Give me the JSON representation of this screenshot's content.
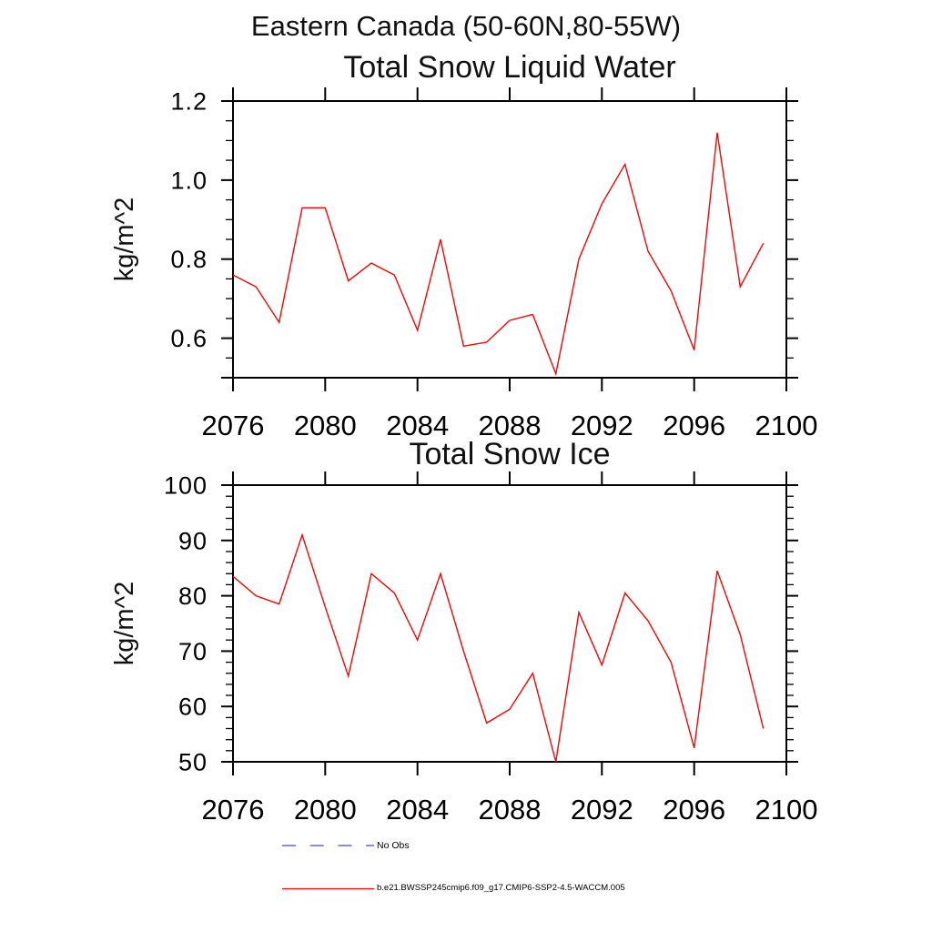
{
  "figure": {
    "title": "Eastern Canada (50-60N,80-55W)",
    "background_color": "#ffffff",
    "axis_color": "#000000"
  },
  "legend": {
    "items": [
      {
        "label": "No Obs",
        "color": "#4444cc",
        "style": "dashed"
      },
      {
        "label": "b.e21.BWSSP245cmip6.f09_g17.CMIP6-SSP2-4.5-WACCM.005",
        "color": "#ff0000",
        "style": "solid"
      }
    ]
  },
  "chart_data": [
    {
      "type": "line",
      "title": "Total Snow Liquid Water",
      "ylabel": "kg/m^2",
      "xlabel": "",
      "grid": false,
      "legend_position": "below-figure",
      "x": [
        2076,
        2077,
        2078,
        2079,
        2080,
        2081,
        2082,
        2083,
        2084,
        2085,
        2086,
        2087,
        2088,
        2089,
        2090,
        2091,
        2092,
        2093,
        2094,
        2095,
        2096,
        2097,
        2098,
        2099
      ],
      "series": [
        {
          "name": "b.e21.BWSSP245cmip6.f09_g17.CMIP6-SSP2-4.5-WACCM.005",
          "color": "#ff0000",
          "values": [
            0.76,
            0.73,
            0.64,
            0.93,
            0.93,
            0.745,
            0.79,
            0.76,
            0.62,
            0.85,
            0.58,
            0.59,
            0.645,
            0.66,
            0.51,
            0.8,
            0.94,
            1.04,
            0.82,
            0.72,
            0.57,
            1.12,
            0.73,
            0.84
          ]
        }
      ],
      "xlim": [
        2076,
        2100
      ],
      "ylim": [
        0.5,
        1.2
      ],
      "xticks": [
        2076,
        2080,
        2084,
        2088,
        2092,
        2096,
        2100
      ],
      "yticks": [
        0.6,
        0.8,
        1.0,
        1.2
      ],
      "ytick_labels": [
        "0.6",
        "0.8",
        "1.0",
        "1.2"
      ],
      "yminor_step": 0.05
    },
    {
      "type": "line",
      "title": "Total Snow Ice",
      "ylabel": "kg/m^2",
      "xlabel": "",
      "grid": false,
      "legend_position": "below-figure",
      "x": [
        2076,
        2077,
        2078,
        2079,
        2080,
        2081,
        2082,
        2083,
        2084,
        2085,
        2086,
        2087,
        2088,
        2089,
        2090,
        2091,
        2092,
        2093,
        2094,
        2095,
        2096,
        2097,
        2098,
        2099
      ],
      "series": [
        {
          "name": "b.e21.BWSSP245cmip6.f09_g17.CMIP6-SSP2-4.5-WACCM.005",
          "color": "#ff0000",
          "values": [
            83.5,
            80,
            78.5,
            91,
            78,
            65.5,
            84,
            80.5,
            72,
            84,
            70,
            57,
            59.5,
            66,
            50,
            77,
            67.5,
            80.5,
            75.5,
            68,
            52.5,
            84.5,
            73,
            56
          ]
        }
      ],
      "xlim": [
        2076,
        2100
      ],
      "ylim": [
        50,
        100
      ],
      "xticks": [
        2076,
        2080,
        2084,
        2088,
        2092,
        2096,
        2100
      ],
      "yticks": [
        50,
        60,
        70,
        80,
        90,
        100
      ],
      "ytick_labels": [
        "50",
        "60",
        "70",
        "80",
        "90",
        "100"
      ],
      "yminor_step": 2
    }
  ]
}
